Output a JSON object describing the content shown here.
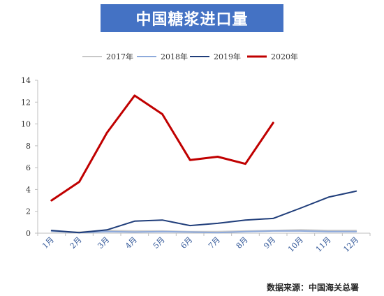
{
  "chart_data": {
    "type": "line",
    "title": "中国糖浆进口量",
    "categories": [
      "1月",
      "2月",
      "3月",
      "4月",
      "5月",
      "6月",
      "7月",
      "8月",
      "9月",
      "10月",
      "11月",
      "12月"
    ],
    "series": [
      {
        "name": "2017年",
        "color": "#c8c8c8",
        "values": [
          0.15,
          0.1,
          0.25,
          0.2,
          0.2,
          0.15,
          0.15,
          0.2,
          0.25,
          0.3,
          0.25,
          0.25
        ]
      },
      {
        "name": "2018年",
        "color": "#8eaadb",
        "values": [
          0.2,
          0.05,
          0.15,
          0.1,
          0.15,
          0.1,
          0.05,
          0.15,
          0.2,
          0.2,
          0.15,
          0.15
        ]
      },
      {
        "name": "2019年",
        "color": "#1f3d7a",
        "values": [
          0.25,
          0.05,
          0.3,
          1.1,
          1.2,
          0.7,
          0.9,
          1.2,
          1.35,
          2.3,
          3.3,
          3.85
        ]
      },
      {
        "name": "2020年",
        "color": "#c00000",
        "values": [
          3.0,
          4.7,
          9.2,
          12.6,
          10.9,
          6.7,
          7.0,
          6.35,
          10.1,
          null,
          null,
          null
        ]
      }
    ],
    "ylim": [
      0,
      14
    ],
    "yticks": [
      0,
      2,
      4,
      6,
      8,
      10,
      12,
      14
    ],
    "xlabel": "",
    "ylabel": "",
    "grid": false,
    "legend_position": "top"
  },
  "source": "数据来源：中国海关总署"
}
